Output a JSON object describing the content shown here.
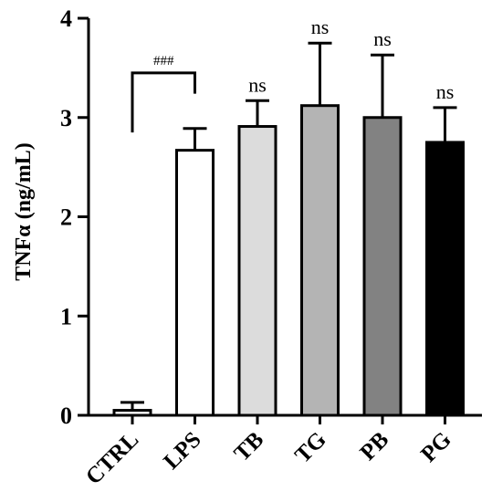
{
  "chart_data": {
    "type": "bar",
    "ylabel": "TNFα (ng/mL)",
    "ylim": [
      0,
      4
    ],
    "yticks": [
      0,
      1,
      2,
      3,
      4
    ],
    "grid": false,
    "categories": [
      "CTRL",
      "LPS",
      "TB",
      "TG",
      "PB",
      "PG"
    ],
    "values": [
      0.05,
      2.67,
      2.91,
      3.12,
      3.0,
      2.75
    ],
    "errors": [
      0.08,
      0.22,
      0.26,
      0.63,
      0.63,
      0.35
    ],
    "fill_colors": [
      "#ffffff",
      "#ffffff",
      "#dcdcdc",
      "#b4b4b4",
      "#828282",
      "#000000"
    ],
    "annotations": [
      {
        "category": "TB",
        "text": "ns"
      },
      {
        "category": "TG",
        "text": "ns"
      },
      {
        "category": "PB",
        "text": "ns"
      },
      {
        "category": "PG",
        "text": "ns"
      }
    ],
    "comparison": {
      "from": "CTRL",
      "to": "LPS",
      "text": "###"
    }
  }
}
